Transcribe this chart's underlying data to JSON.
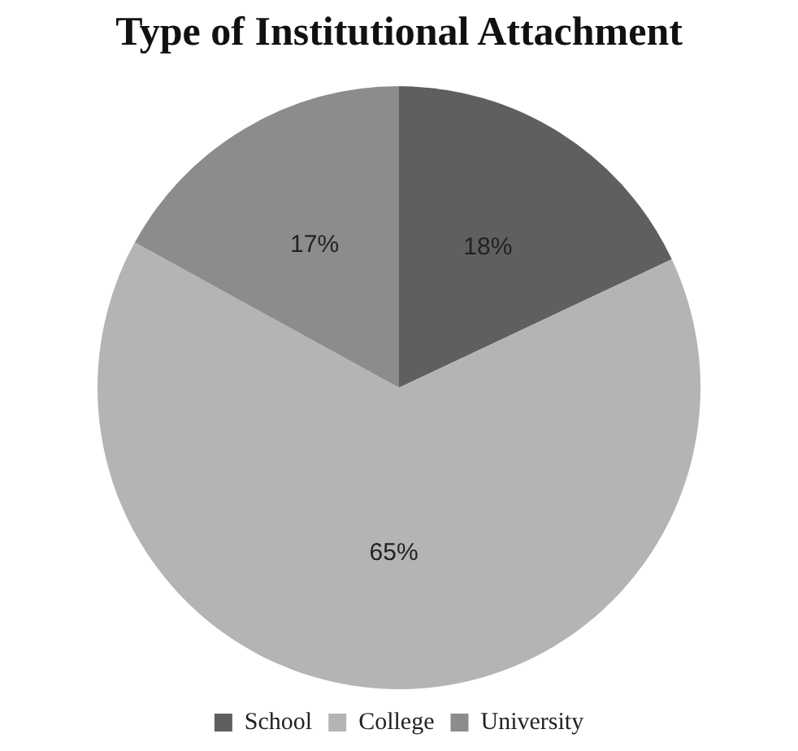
{
  "chart_data": {
    "type": "pie",
    "title": "Type of Institutional Attachment",
    "categories": [
      "School",
      "College",
      "University"
    ],
    "values": [
      18,
      65,
      17
    ],
    "colors": [
      "#5f5f5f",
      "#b4b4b4",
      "#8c8c8c"
    ],
    "value_labels": [
      "18%",
      "65%",
      "17%"
    ],
    "legend": "bottom"
  }
}
